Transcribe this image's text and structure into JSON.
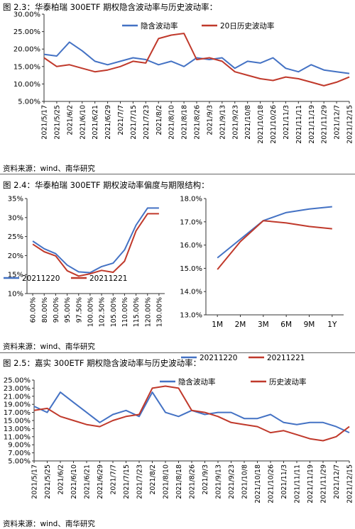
{
  "captions": {
    "fig23": "图 2.3：华泰柏瑞 300ETF 期权隐含波动率与历史波动率：",
    "fig24": "图 2.4：华泰柏瑞 300ETF 期权波动率偏度与期限结构：",
    "fig25": "图 2.5：嘉实 300ETF 期权隐含波动率与历史波动率："
  },
  "source_text": "资料来源：wind、南华研究",
  "colors": {
    "blue": "#4472C4",
    "red": "#C0392B"
  },
  "chart_data": [
    {
      "type": "line",
      "id": "fig23",
      "x": [
        "2021/5/17",
        "2021/5/25",
        "2021/6/2",
        "2021/6/10",
        "2021/6/21",
        "2021/6/29",
        "2021/7/7",
        "2021/7/15",
        "2021/7/23",
        "2021/8/2",
        "2021/8/10",
        "2021/8/18",
        "2021/8/26",
        "2021/9/3",
        "2021/9/13",
        "2021/9/23",
        "2021/10/8",
        "2021/10/18",
        "2021/10/26",
        "2021/11/3",
        "2021/11/11",
        "2021/11/19",
        "2021/11/29",
        "2021/12/7",
        "2021/12/15"
      ],
      "ylim": [
        5,
        30
      ],
      "yticks": [
        "5.00%",
        "10.00%",
        "15.00%",
        "20.00%",
        "25.00%",
        "30.00%"
      ],
      "legend": "top",
      "series": [
        {
          "name": "隐含波动率",
          "color": "blue",
          "values": [
            18.5,
            18.0,
            22.0,
            19.5,
            16.5,
            15.5,
            16.5,
            17.5,
            17.0,
            15.5,
            16.5,
            15.0,
            17.5,
            17.0,
            17.5,
            14.5,
            16.5,
            16.0,
            17.5,
            14.5,
            13.5,
            15.5,
            14.0,
            13.5,
            13.0
          ]
        },
        {
          "name": "20日历史波动率",
          "color": "red",
          "values": [
            17.5,
            15.0,
            15.5,
            14.5,
            13.5,
            14.0,
            15.0,
            16.5,
            16.0,
            23.0,
            24.0,
            24.5,
            17.0,
            17.5,
            16.5,
            13.5,
            12.5,
            11.5,
            11.0,
            12.0,
            11.5,
            10.5,
            9.5,
            10.5,
            12.0
          ]
        }
      ]
    },
    {
      "type": "line",
      "id": "fig24a",
      "categories": [
        "60.00%",
        "80.00%",
        "90.00%",
        "95.00%",
        "97.50%",
        "100.00%",
        "102.50%",
        "105.00%",
        "110.00%",
        "115.00%",
        "120.00%",
        "130.00%"
      ],
      "ylim": [
        10,
        35
      ],
      "yticks": [
        "10%",
        "15%",
        "20%",
        "25%",
        "30%",
        "35%"
      ],
      "legend": "bottom",
      "series": [
        {
          "name": "20211220",
          "color": "blue",
          "values": [
            23.8,
            21.8,
            20.5,
            17.5,
            15.7,
            15.5,
            17.1,
            18.0,
            21.5,
            28.0,
            32.5,
            32.5
          ]
        },
        {
          "name": "20211221",
          "color": "red",
          "values": [
            23.0,
            21.0,
            19.9,
            16.0,
            14.6,
            15.2,
            16.1,
            15.6,
            18.5,
            26.5,
            31.0,
            31.0
          ]
        }
      ]
    },
    {
      "type": "line",
      "id": "fig24b",
      "categories": [
        "1M",
        "2M",
        "3M",
        "6M",
        "9M",
        "1Y"
      ],
      "ylim": [
        13,
        18
      ],
      "yticks": [
        "13.0%",
        "14.0%",
        "15.0%",
        "16.0%",
        "17.0%",
        "18.0%"
      ],
      "legend": "bottom",
      "series": [
        {
          "name": "20211220",
          "color": "blue",
          "values": [
            15.45,
            16.25,
            17.05,
            17.4,
            17.55,
            17.65
          ]
        },
        {
          "name": "20211221",
          "color": "red",
          "values": [
            14.95,
            16.15,
            17.05,
            16.95,
            16.8,
            16.7
          ]
        }
      ]
    },
    {
      "type": "line",
      "id": "fig25",
      "x": [
        "2021/5/17",
        "2021/5/25",
        "2021/6/2",
        "2021/6/10",
        "2021/6/21",
        "2021/6/29",
        "2021/7/7",
        "2021/7/15",
        "2021/7/23",
        "2021/8/2",
        "2021/8/10",
        "2021/8/18",
        "2021/8/26",
        "2021/9/3",
        "2021/9/13",
        "2021/9/23",
        "2021/10/8",
        "2021/10/18",
        "2021/10/26",
        "2021/11/3",
        "2021/11/11",
        "2021/11/19",
        "2021/11/29",
        "2021/12/7",
        "2021/12/15"
      ],
      "ylim": [
        5,
        25
      ],
      "yticks": [
        "5.00%",
        "7.00%",
        "9.00%",
        "11.00%",
        "13.00%",
        "15.00%",
        "17.00%",
        "19.00%",
        "21.00%",
        "23.00%",
        "25.00%"
      ],
      "legend": "top",
      "series": [
        {
          "name": "隐含波动率",
          "color": "blue",
          "values": [
            18.5,
            17.0,
            22.0,
            19.5,
            17.0,
            14.5,
            16.5,
            17.5,
            16.0,
            22.0,
            17.0,
            16.0,
            17.5,
            16.5,
            17.0,
            17.0,
            15.5,
            15.5,
            16.5,
            14.5,
            14.0,
            14.5,
            14.5,
            13.5,
            12.0
          ]
        },
        {
          "name": "历史波动率",
          "color": "red",
          "values": [
            17.5,
            18.0,
            16.0,
            15.0,
            14.0,
            13.5,
            15.0,
            16.0,
            16.5,
            23.0,
            23.5,
            23.0,
            17.5,
            17.0,
            16.0,
            14.5,
            14.0,
            13.5,
            12.0,
            12.5,
            11.5,
            10.5,
            10.0,
            11.0,
            13.5
          ]
        }
      ]
    }
  ]
}
